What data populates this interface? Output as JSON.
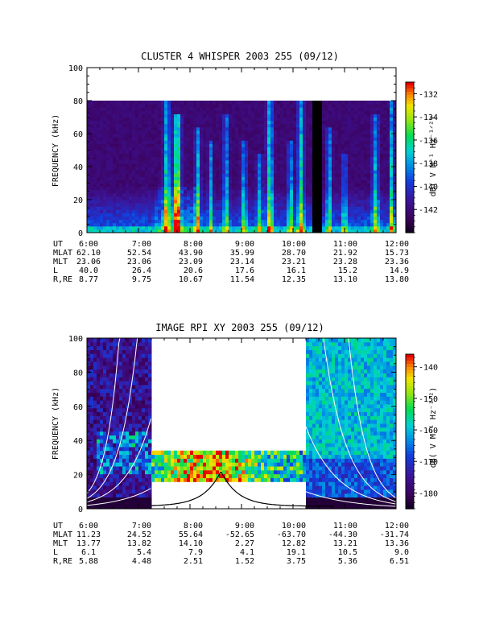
{
  "chart_data": [
    {
      "type": "heatmap",
      "title": "CLUSTER 4 WHISPER 2003 255 (09/12)",
      "ylabel": "FREQUENCY (kHz)",
      "ylim": [
        0,
        100
      ],
      "y_ticks": [
        "0",
        "20",
        "40",
        "60",
        "80",
        "100"
      ],
      "x_ticks": [
        "6:00",
        "7:00",
        "8:00",
        "9:00",
        "10:00",
        "11:00",
        "12:00"
      ],
      "colorbar": {
        "label": "dB( V M⁻¹ Hz⁻¹ᐟ²)",
        "ticks": [
          "-132",
          "-134",
          "-136",
          "-138",
          "-140",
          "-142"
        ],
        "range": [
          -144,
          -131
        ]
      },
      "data_top_khz": 80,
      "table": {
        "headers": [
          "UT",
          "MLAT",
          "MLT",
          "L",
          "R,RE"
        ],
        "rows": [
          [
            "6:00",
            "7:00",
            "8:00",
            "9:00",
            "10:00",
            "11:00",
            "12:00"
          ],
          [
            "62.10",
            "52.54",
            "43.90",
            "35.99",
            "28.70",
            "21.92",
            "15.73"
          ],
          [
            "23.06",
            "23.06",
            "23.09",
            "23.14",
            "23.21",
            "23.28",
            "23.36"
          ],
          [
            "40.0",
            "26.4",
            "20.6",
            "17.6",
            "16.1",
            "15.2",
            "14.9"
          ],
          [
            "8.77",
            "9.75",
            "10.67",
            "11.54",
            "12.35",
            "13.10",
            "13.80"
          ]
        ]
      }
    },
    {
      "type": "heatmap",
      "title": "IMAGE RPI XY 2003 255 (09/12)",
      "ylabel": "FREQUENCY (kHz)",
      "ylim": [
        0,
        100
      ],
      "y_ticks": [
        "0",
        "20",
        "40",
        "60",
        "80",
        "100"
      ],
      "x_ticks": [
        "6:00",
        "7:00",
        "8:00",
        "9:00",
        "10:00",
        "11:00",
        "12:00"
      ],
      "colorbar": {
        "label": "dB( V M⁻¹ Hz⁻¹ᐟ²)",
        "ticks": [
          "-140",
          "-150",
          "-160",
          "-170",
          "-180"
        ],
        "range": [
          -185,
          -136
        ]
      },
      "full_band_spans_ut": [
        [
          6.0,
          7.25
        ],
        [
          10.25,
          12.0
        ]
      ],
      "narrow_band_khz": [
        15,
        33
      ],
      "overlay_peak": {
        "x_ut": 8.6,
        "y_khz": 22
      },
      "table": {
        "headers": [
          "UT",
          "MLAT",
          "MLT",
          "L",
          "R,RE"
        ],
        "rows": [
          [
            "6:00",
            "7:00",
            "8:00",
            "9:00",
            "10:00",
            "11:00",
            "12:00"
          ],
          [
            "11.23",
            "24.52",
            "55.64",
            "-52.65",
            "-63.70",
            "-44.30",
            "-31.74"
          ],
          [
            "13.77",
            "13.82",
            "14.10",
            "2.27",
            "12.82",
            "13.21",
            "13.36"
          ],
          [
            "6.1",
            "5.4",
            "7.9",
            "4.1",
            "19.1",
            "10.5",
            "9.0"
          ],
          [
            "5.88",
            "4.48",
            "2.51",
            "1.52",
            "3.75",
            "5.36",
            "6.51"
          ]
        ]
      }
    }
  ]
}
